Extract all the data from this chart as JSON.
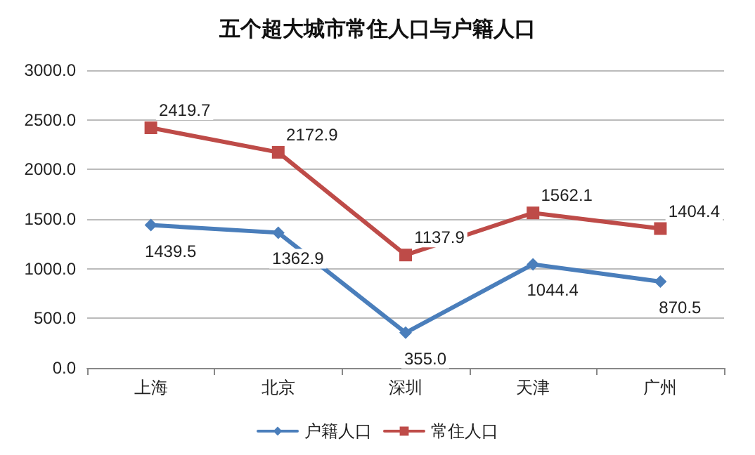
{
  "chart_data": {
    "type": "line",
    "title": "五个超大城市常住人口与户籍人口",
    "categories": [
      "上海",
      "北京",
      "深圳",
      "天津",
      "广州"
    ],
    "series": [
      {
        "name": "户籍人口",
        "color": "#4a7ebb",
        "marker": "diamond",
        "values": [
          1439.5,
          1362.9,
          355.0,
          1044.4,
          870.5
        ],
        "value_labels": [
          "1439.5",
          "1362.9",
          "355.0",
          "1044.4",
          "870.5"
        ]
      },
      {
        "name": "常住人口",
        "color": "#be4b48",
        "marker": "square",
        "values": [
          2419.7,
          2172.9,
          1137.9,
          1562.1,
          1404.4
        ],
        "value_labels": [
          "2419.7",
          "2172.9",
          "1137.9",
          "1562.1",
          "1404.4"
        ]
      }
    ],
    "ylim": [
      0,
      3000
    ],
    "yticks": [
      {
        "value": 0,
        "label": "0.0"
      },
      {
        "value": 500,
        "label": "500.0"
      },
      {
        "value": 1000,
        "label": "1000.0"
      },
      {
        "value": 1500,
        "label": "1500.0"
      },
      {
        "value": 2000,
        "label": "2000.0"
      },
      {
        "value": 2500,
        "label": "2500.0"
      },
      {
        "value": 3000,
        "label": "3000.0"
      }
    ],
    "grid": "y",
    "legend": "bottom",
    "line_style": "solid"
  }
}
